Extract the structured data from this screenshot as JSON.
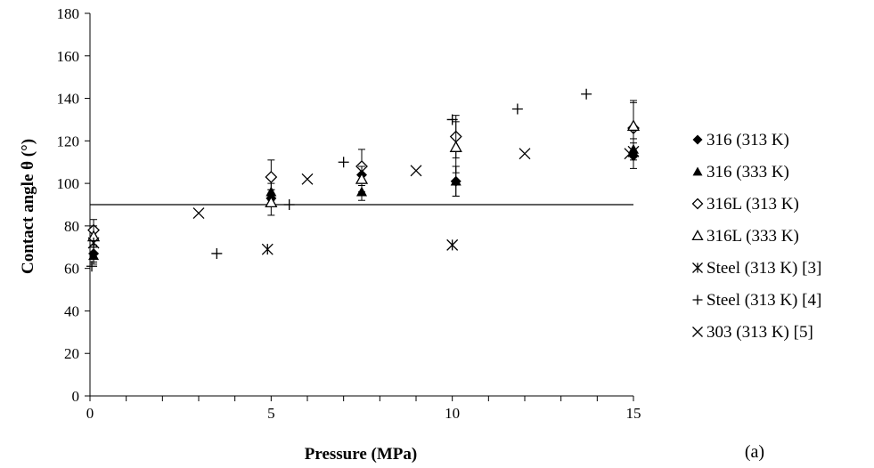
{
  "chart_data": {
    "type": "scatter",
    "xlabel": "Pressure (MPa)",
    "ylabel": "Contact angle θ (°)",
    "panel_label": "(a)",
    "xlim": [
      0,
      15
    ],
    "ylim": [
      0,
      180
    ],
    "x_ticks": [
      "0",
      "5",
      "10",
      "15"
    ],
    "y_ticks": [
      "0",
      "20",
      "40",
      "60",
      "80",
      "100",
      "120",
      "140",
      "160",
      "180"
    ],
    "reference_line_y": 90,
    "legend_position": "right",
    "series": [
      {
        "name": "316 (313 K)",
        "marker": "filled-diamond",
        "points": [
          [
            0.1,
            67
          ],
          [
            5.0,
            93
          ],
          [
            7.5,
            104
          ],
          [
            10.1,
            101
          ],
          [
            15.0,
            113
          ]
        ],
        "err": [
          4,
          4,
          5,
          7,
          6
        ]
      },
      {
        "name": "316 (333 K)",
        "marker": "filled-triangle",
        "points": [
          [
            0.1,
            66
          ],
          [
            5.0,
            96
          ],
          [
            7.5,
            96
          ],
          [
            10.1,
            101
          ],
          [
            15.0,
            116
          ]
        ],
        "err": [
          4,
          4,
          4,
          7,
          5
        ]
      },
      {
        "name": "316L (313 K)",
        "marker": "open-diamond",
        "points": [
          [
            0.1,
            78
          ],
          [
            5.0,
            103
          ],
          [
            7.5,
            108
          ],
          [
            10.1,
            122
          ],
          [
            15.0,
            126
          ]
        ],
        "err": [
          5,
          8,
          8,
          10,
          12
        ]
      },
      {
        "name": "316L (333 K)",
        "marker": "open-triangle",
        "points": [
          [
            0.1,
            75
          ],
          [
            5.0,
            91
          ],
          [
            7.5,
            102
          ],
          [
            10.1,
            117
          ],
          [
            15.0,
            127
          ]
        ],
        "err": [
          5,
          6,
          6,
          12,
          12
        ]
      },
      {
        "name": "Steel (313 K) [3]",
        "marker": "asterisk",
        "points": [
          [
            0.1,
            72
          ],
          [
            4.9,
            69
          ],
          [
            10.0,
            71
          ],
          [
            15.0,
            115
          ]
        ]
      },
      {
        "name": "Steel (313 K) [4]",
        "marker": "plus",
        "points": [
          [
            0.05,
            61
          ],
          [
            3.5,
            67
          ],
          [
            5.5,
            90
          ],
          [
            7.0,
            110
          ],
          [
            10.0,
            130
          ],
          [
            11.8,
            135
          ],
          [
            13.7,
            142
          ]
        ]
      },
      {
        "name": "303 (313 K) [5]",
        "marker": "cross",
        "points": [
          [
            3.0,
            86
          ],
          [
            6.0,
            102
          ],
          [
            9.0,
            106
          ],
          [
            12.0,
            114
          ],
          [
            14.9,
            114
          ]
        ]
      }
    ]
  }
}
